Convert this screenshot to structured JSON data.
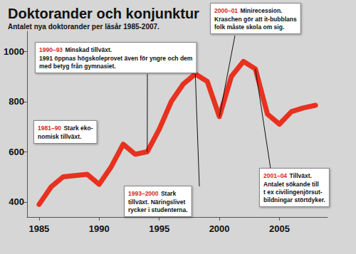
{
  "chart_data": {
    "type": "line",
    "title": "Doktorander och konjunktur",
    "subtitle": "Antalet nya doktorander per läsår 1985-2007.",
    "x": [
      1985,
      1986,
      1987,
      1988,
      1989,
      1990,
      1991,
      1992,
      1993,
      1994,
      1995,
      1996,
      1997,
      1998,
      1999,
      2000,
      2001,
      2002,
      2003,
      2004,
      2005,
      2006,
      2007,
      2008
    ],
    "values": [
      390,
      460,
      500,
      505,
      510,
      470,
      540,
      630,
      590,
      600,
      690,
      800,
      870,
      910,
      880,
      740,
      900,
      960,
      930,
      750,
      710,
      760,
      775,
      785
    ],
    "color": "#e8311f",
    "xlim": [
      1984,
      2009
    ],
    "xticks": [
      1985,
      1990,
      1995,
      2000,
      2005
    ],
    "ylim": [
      340,
      1080
    ],
    "yticks": [
      400,
      600,
      800,
      1000
    ],
    "grid": false,
    "annotations": [
      {
        "label": "1981–90",
        "text": [
          "Stark eko-",
          "nomisk tillväxt."
        ]
      },
      {
        "label": "1990–93",
        "text": [
          "Minskad tillväxt.",
          "1991 öppnas högskoleprovet även för yngre och dem",
          "med betyg från gymnasiet."
        ],
        "x": 1994
      },
      {
        "label": "1993–2000",
        "text": [
          "Stark",
          "tillväxt. Näringslivet",
          "rycker i studenterna."
        ],
        "x": 1998
      },
      {
        "label": "2000–01",
        "text": [
          "Minirecession.",
          "Kraschen gör att it-bubblans",
          "folk måste skola om sig."
        ],
        "x": 2000
      },
      {
        "label": "2001–04",
        "text": [
          "Tillväxt.",
          "Antalet sökande till",
          "t ex civilingenjörsut-",
          "bildningar störtdyker."
        ],
        "x": 2003
      }
    ]
  }
}
